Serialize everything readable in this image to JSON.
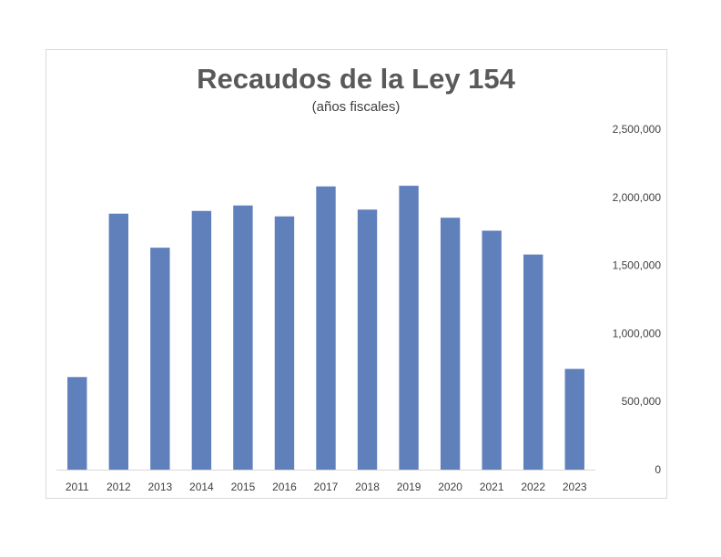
{
  "chart_data": {
    "type": "bar",
    "title": "Recaudos de la Ley 154",
    "subtitle": "(años fiscales)",
    "categories": [
      "2011",
      "2012",
      "2013",
      "2014",
      "2015",
      "2016",
      "2017",
      "2018",
      "2019",
      "2020",
      "2021",
      "2022",
      "2023"
    ],
    "values": [
      680000,
      1880000,
      1630000,
      1900000,
      1940000,
      1860000,
      2080000,
      1910000,
      2085000,
      1850000,
      1755000,
      1580000,
      740000
    ],
    "ylim": [
      0,
      2500000
    ],
    "yticks": [
      0,
      500000,
      1000000,
      1500000,
      2000000,
      2500000
    ],
    "ytick_labels": [
      "0",
      "500,000",
      "1,000,000",
      "1,500,000",
      "2,000,000",
      "2,500,000"
    ],
    "y_axis_position": "right",
    "grid": false,
    "legend": "none",
    "bar_color": "#6080bc"
  }
}
